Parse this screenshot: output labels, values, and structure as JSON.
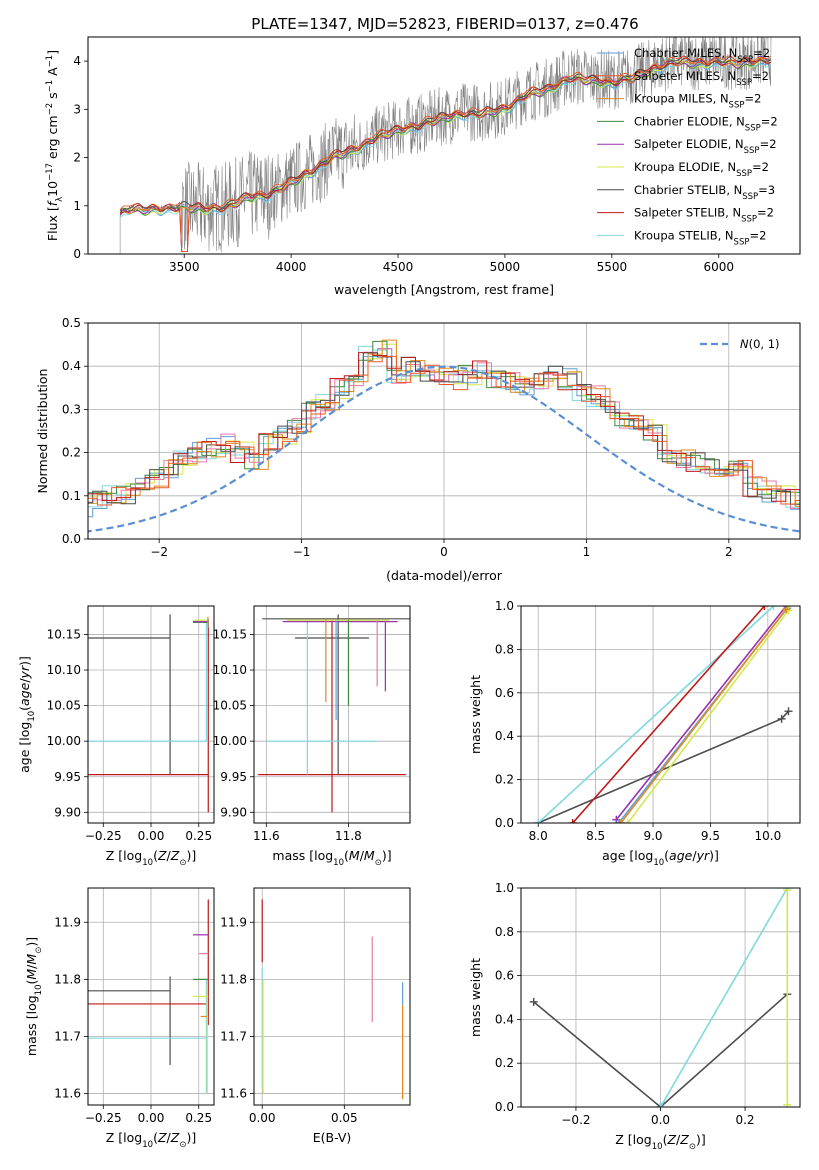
{
  "figure_title": "PLATE=1347, MJD=52823, FIBERID=0137, z=0.476",
  "colors": {
    "Chabrier MILES": "#5fa0d9",
    "Salpeter MILES": "#f0562a",
    "Kroupa MILES": "#e08a1e",
    "Chabrier ELODIE": "#3c8a3c",
    "Salpeter ELODIE": "#9b30b0",
    "Kroupa ELODIE": "#d4e84a",
    "Chabrier STELIB": "#4d4d4d",
    "Salpeter STELIB": "#c01818",
    "Kroupa STELIB": "#80d8e0",
    "data": "#7f7f7f",
    "gaussian": "#5b8fd4",
    "pink": "#e87aa8"
  },
  "chart_data": [
    {
      "id": "spectrum",
      "type": "line",
      "title": "PLATE=1347, MJD=52823, FIBERID=0137, z=0.476",
      "xlabel": "wavelength [Angstrom, rest frame]",
      "ylabel": "Flux [f_λ 10^-17 erg cm^-2 s^-1 A^-1]",
      "xlim": [
        3050,
        6380
      ],
      "ylim": [
        0,
        4.5
      ],
      "xticks": [
        3500,
        4000,
        4500,
        5000,
        5500,
        6000
      ],
      "yticks": [
        0,
        1,
        2,
        3,
        4
      ],
      "continuum": {
        "x": [
          3200,
          3250,
          3300,
          3400,
          3500,
          3600,
          3700,
          3800,
          3900,
          4000,
          4100,
          4200,
          4300,
          4400,
          4500,
          4600,
          4700,
          4800,
          4900,
          5000,
          5100,
          5200,
          5300,
          5400,
          5500,
          5600,
          5700,
          5800,
          5900,
          6000,
          6100,
          6250
        ],
        "y": [
          0.85,
          0.95,
          0.92,
          0.95,
          0.98,
          0.95,
          0.98,
          1.2,
          1.25,
          1.5,
          1.75,
          2.05,
          2.2,
          2.45,
          2.6,
          2.7,
          2.85,
          2.95,
          2.95,
          3.05,
          3.35,
          3.45,
          3.7,
          3.65,
          3.6,
          3.7,
          3.9,
          4.05,
          4.0,
          4.05,
          4.0,
          4.1
        ]
      },
      "legend_position": "upper right",
      "legend": [
        {
          "label": "Chabrier MILES, N_SSP=2",
          "pre": "Chabrier MILES, N",
          "sub": "SSP",
          "post": "=2"
        },
        {
          "label": "Salpeter MILES, N_SSP=2",
          "pre": "Salpeter MILES, N",
          "sub": "SSP",
          "post": "=2"
        },
        {
          "label": "Kroupa MILES, N_SSP=2",
          "pre": "Kroupa MILES, N",
          "sub": "SSP",
          "post": "=2"
        },
        {
          "label": "Chabrier ELODIE, N_SSP=2",
          "pre": "Chabrier ELODIE, N",
          "sub": "SSP",
          "post": "=2"
        },
        {
          "label": "Salpeter ELODIE, N_SSP=2",
          "pre": "Salpeter ELODIE, N",
          "sub": "SSP",
          "post": "=2"
        },
        {
          "label": "Kroupa ELODIE, N_SSP=2",
          "pre": "Kroupa ELODIE, N",
          "sub": "SSP",
          "post": "=2"
        },
        {
          "label": "Chabrier STELIB, N_SSP=3",
          "pre": "Chabrier STELIB, N",
          "sub": "SSP",
          "post": "=3"
        },
        {
          "label": "Salpeter STELIB, N_SSP=2",
          "pre": "Salpeter STELIB, N",
          "sub": "SSP",
          "post": "=2"
        },
        {
          "label": "Kroupa STELIB, N_SSP=2",
          "pre": "Kroupa STELIB, N",
          "sub": "SSP",
          "post": "=2"
        }
      ]
    },
    {
      "id": "residuals",
      "type": "step-histogram",
      "xlabel": "(data-model)/error",
      "ylabel": "Normed distribution",
      "xlim": [
        -2.5,
        2.5
      ],
      "ylim": [
        0,
        0.5
      ],
      "xticks": [
        -2,
        -1,
        0,
        1,
        2
      ],
      "yticks": [
        0.0,
        0.1,
        0.2,
        0.3,
        0.4,
        0.5
      ],
      "gaussian_label": "N(0,1)",
      "bin_width": 0.1,
      "base_profile": [
        0.01,
        0.012,
        0.015,
        0.02,
        0.025,
        0.03,
        0.04,
        0.05,
        0.06,
        0.075,
        0.09,
        0.1,
        0.105,
        0.12,
        0.14,
        0.16,
        0.18,
        0.2,
        0.21,
        0.22,
        0.2,
        0.18,
        0.23,
        0.24,
        0.26,
        0.3,
        0.32,
        0.35,
        0.38,
        0.43,
        0.44,
        0.38,
        0.4,
        0.39,
        0.38,
        0.37,
        0.38,
        0.39,
        0.37,
        0.36,
        0.35,
        0.36,
        0.38,
        0.37,
        0.34,
        0.33,
        0.3,
        0.28,
        0.27,
        0.25,
        0.2,
        0.19,
        0.18,
        0.17,
        0.15,
        0.16,
        0.12,
        0.11,
        0.1,
        0.09,
        0.1,
        0.08,
        0.07,
        0.06,
        0.05,
        0.05,
        0.04,
        0.04,
        0.03,
        0.03
      ]
    },
    {
      "id": "age-vs-Z",
      "type": "errorbar",
      "xlabel": "Z [log10(Z/Z☉)]",
      "ylabel": "age [log10(age/yr)]",
      "xlim": [
        -0.33,
        0.33
      ],
      "ylim": [
        9.885,
        10.19
      ],
      "xticks": [
        "-0.25",
        "0.00",
        "0.25"
      ],
      "yticks": [
        "9.90",
        "9.95",
        "10.00",
        "10.05",
        "10.10",
        "10.15"
      ]
    },
    {
      "id": "age-vs-mass",
      "type": "errorbar",
      "xlabel": "mass [log10(M/M☉)]",
      "ylabel": "",
      "xlim": [
        11.57,
        11.95
      ],
      "ylim": [
        9.885,
        10.19
      ],
      "xticks": [
        "11.6",
        "11.8"
      ],
      "yticks": [
        "9.90",
        "9.95",
        "10.00",
        "10.05",
        "10.10",
        "10.15"
      ]
    },
    {
      "id": "cumulative-age",
      "type": "line",
      "xlabel": "age [log10(age/yr)]",
      "ylabel": "mass weight",
      "xlim": [
        7.85,
        10.28
      ],
      "ylim": [
        0,
        1
      ],
      "xticks": [
        "8.0",
        "8.5",
        "9.0",
        "9.5",
        "10.0"
      ],
      "yticks": [
        "0.0",
        "0.2",
        "0.4",
        "0.6",
        "0.8",
        "1.0"
      ],
      "series": [
        {
          "name": "Chabrier STELIB",
          "x": [
            8.0,
            10.12,
            10.18
          ],
          "y": [
            0.0,
            0.48,
            0.515
          ]
        },
        {
          "name": "Kroupa STELIB",
          "x": [
            8.0,
            10.05
          ],
          "y": [
            0.0,
            1.0
          ]
        },
        {
          "name": "Salpeter STELIB",
          "x": [
            8.3,
            9.97
          ],
          "y": [
            0.0,
            1.0
          ]
        },
        {
          "name": "Salpeter ELODIE",
          "x": [
            8.68,
            10.16
          ],
          "y": [
            0.015,
            1.0
          ]
        },
        {
          "name": "Chabrier MILES",
          "x": [
            8.7,
            10.17
          ],
          "y": [
            0.0,
            0.99
          ]
        },
        {
          "name": "Kroupa ELODIE",
          "x": [
            8.78,
            10.18
          ],
          "y": [
            0.0,
            0.98
          ]
        },
        {
          "name": "Kroupa MILES",
          "x": [
            8.72,
            10.16
          ],
          "y": [
            0.0,
            0.985
          ]
        }
      ]
    },
    {
      "id": "mass-vs-Z",
      "type": "errorbar",
      "xlabel": "Z [log10(Z/Z☉)]",
      "ylabel": "mass [log10(M/M☉)]",
      "xlim": [
        -0.33,
        0.33
      ],
      "ylim": [
        11.58,
        11.96
      ],
      "xticks": [
        "-0.25",
        "0.00",
        "0.25"
      ],
      "yticks": [
        "11.6",
        "11.7",
        "11.8",
        "11.9"
      ]
    },
    {
      "id": "mass-vs-EBV",
      "type": "errorbar",
      "xlabel": "E(B-V)",
      "ylabel": "",
      "xlim": [
        -0.005,
        0.09
      ],
      "ylim": [
        11.58,
        11.96
      ],
      "xticks": [
        "0.00",
        "0.05"
      ],
      "yticks": [
        "11.6",
        "11.7",
        "11.8",
        "11.9"
      ]
    },
    {
      "id": "cumulative-Z",
      "type": "line",
      "xlabel": "Z [log10(Z/Z☉)]",
      "ylabel": "mass weight",
      "xlim": [
        -0.33,
        0.33
      ],
      "ylim": [
        0,
        1
      ],
      "xticks": [
        "-0.2",
        "0.0",
        "0.2"
      ],
      "yticks": [
        "0.0",
        "0.2",
        "0.4",
        "0.6",
        "0.8",
        "1.0"
      ],
      "series": [
        {
          "name": "Chabrier STELIB",
          "x": [
            -0.3,
            0.0,
            0.3
          ],
          "y": [
            0.48,
            0.0,
            0.515
          ]
        },
        {
          "name": "Kroupa STELIB",
          "x": [
            0.0,
            0.3
          ],
          "y": [
            0.0,
            1.0
          ]
        },
        {
          "name": "Kroupa ELODIE",
          "x": [
            0.3,
            0.3
          ],
          "y": [
            0.01,
            0.99
          ]
        }
      ]
    }
  ]
}
